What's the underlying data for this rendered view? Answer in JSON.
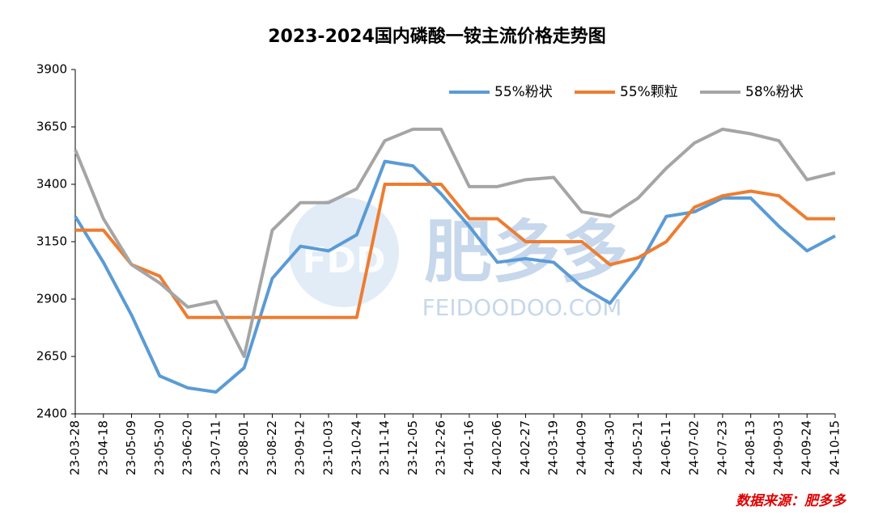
{
  "chart_data": {
    "type": "line",
    "title": "2023-2024国内磷酸一铵主流价格走势图",
    "categories": [
      "23-03-28",
      "23-04-18",
      "23-05-09",
      "23-05-30",
      "23-06-20",
      "23-07-11",
      "23-08-01",
      "23-08-22",
      "23-09-12",
      "23-10-03",
      "23-10-24",
      "23-11-14",
      "23-12-05",
      "23-12-26",
      "24-01-16",
      "24-02-06",
      "24-02-27",
      "24-03-19",
      "24-04-09",
      "24-04-30",
      "24-05-21",
      "24-06-11",
      "24-07-02",
      "24-07-23",
      "24-08-13",
      "24-09-03",
      "24-09-24",
      "24-10-15"
    ],
    "series": [
      {
        "name": "55%粉状",
        "color": "#5b9bd5",
        "values": [
          3260,
          3060,
          2830,
          2565,
          2513,
          2495,
          2600,
          2990,
          3130,
          3110,
          3180,
          3500,
          3480,
          3358,
          3217,
          3060,
          3076,
          3060,
          2953,
          2882,
          3040,
          3260,
          3280,
          3340,
          3340,
          3217,
          3110,
          3175
        ]
      },
      {
        "name": "55%颗粒",
        "color": "#ed7d31",
        "values": [
          3200,
          3200,
          3050,
          3000,
          2820,
          2820,
          2820,
          2820,
          2820,
          2820,
          2820,
          3400,
          3400,
          3400,
          3250,
          3250,
          3150,
          3150,
          3150,
          3050,
          3080,
          3150,
          3300,
          3350,
          3370,
          3350,
          3250,
          3250
        ]
      },
      {
        "name": "58%粉状",
        "color": "#a5a5a5",
        "values": [
          3550,
          3250,
          3050,
          2970,
          2865,
          2890,
          2650,
          3200,
          3320,
          3320,
          3380,
          3590,
          3640,
          3640,
          3390,
          3390,
          3420,
          3430,
          3280,
          3260,
          3340,
          3470,
          3580,
          3640,
          3620,
          3590,
          3420,
          3450
        ]
      }
    ],
    "ylim": [
      2400,
      3900
    ],
    "yticks": [
      2400,
      2650,
      2900,
      3150,
      3400,
      3650,
      3900
    ],
    "grid": false,
    "legend": "top-right",
    "source": "数据来源：肥多多"
  },
  "watermark": {
    "logo": "FDD",
    "name": "肥多多",
    "url": "FEIDOODOO.COM"
  }
}
